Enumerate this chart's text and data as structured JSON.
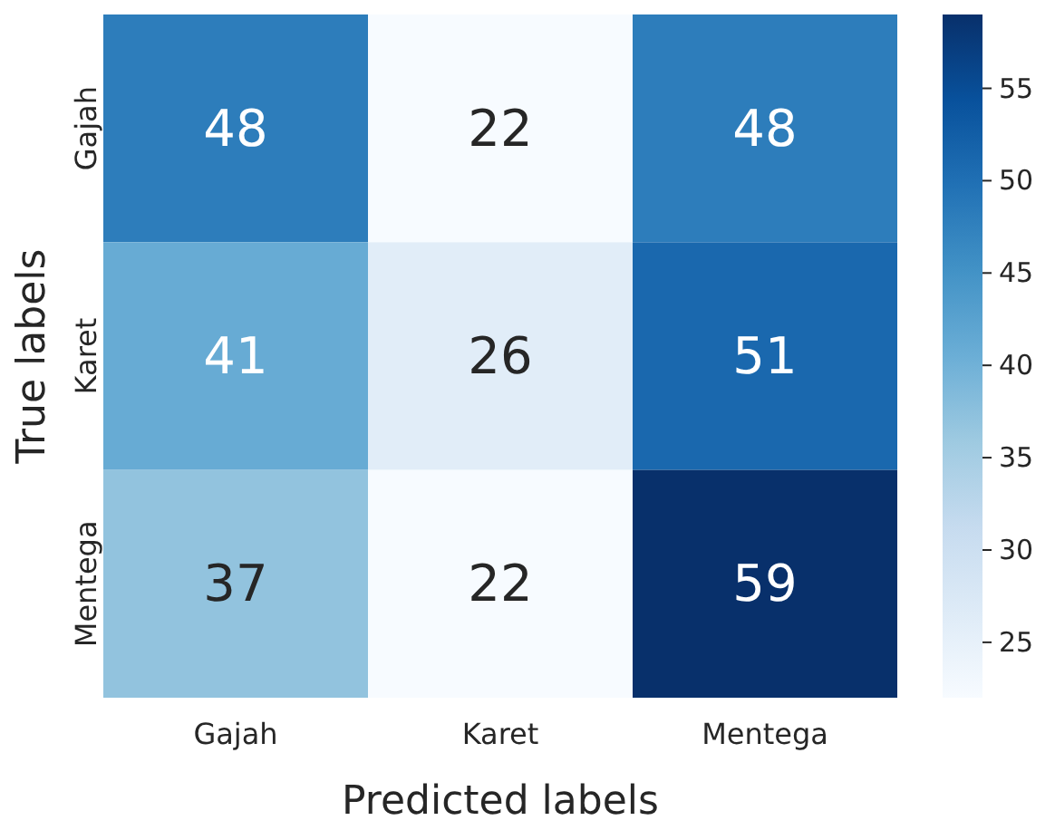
{
  "chart_data": {
    "type": "heatmap",
    "xlabel": "Predicted labels",
    "ylabel": "True labels",
    "categories": [
      "Gajah",
      "Karet",
      "Mentega"
    ],
    "y_categories": [
      "Gajah",
      "Karet",
      "Mentega"
    ],
    "cells": [
      [
        48,
        22,
        48
      ],
      [
        41,
        26,
        51
      ],
      [
        37,
        22,
        59
      ]
    ],
    "data_labels": true,
    "clim": [
      22,
      59
    ],
    "cticks": [
      25,
      30,
      35,
      40,
      45,
      50,
      55
    ]
  }
}
